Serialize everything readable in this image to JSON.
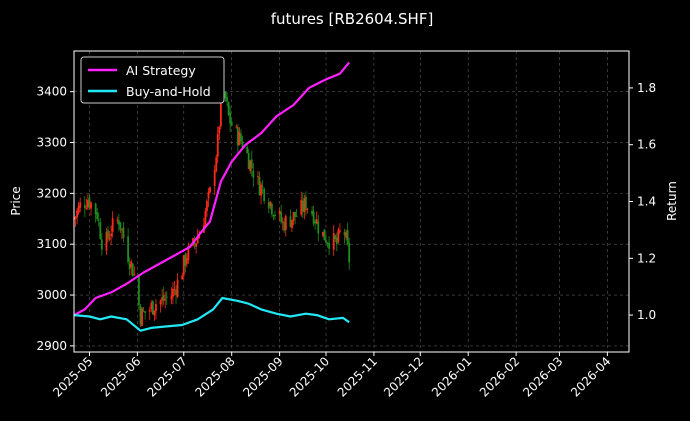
{
  "chart_data": {
    "type": "line",
    "title": "futures [RB2604.SHF]",
    "ylabel_left": "Price",
    "ylabel_right": "Return",
    "grid": true,
    "legend_position": "top-left",
    "colors": {
      "background": "#000000",
      "candle_up": "#ff2a1a",
      "candle_down": "#1e8c1e",
      "ai_strategy": "#ff20ff",
      "buy_and_hold": "#22e8f5",
      "grid": "#5a5a5a"
    },
    "x_range": [
      "2025-04-21",
      "2026-04-15"
    ],
    "x_ticks": [
      "2025-05",
      "2025-06",
      "2025-07",
      "2025-08",
      "2025-09",
      "2025-10",
      "2025-11",
      "2025-12",
      "2026-01",
      "2026-02",
      "2026-03",
      "2026-04"
    ],
    "y_left_range": [
      2888,
      3480
    ],
    "y_left_ticks": [
      2900,
      3000,
      3100,
      3200,
      3300,
      3400
    ],
    "y_right_range": [
      0.87,
      1.93
    ],
    "y_right_ticks": [
      1.0,
      1.2,
      1.4,
      1.6,
      1.8
    ],
    "price_series": [
      {
        "date": "2025-04-21",
        "price": 3150
      },
      {
        "date": "2025-04-25",
        "price": 3175
      },
      {
        "date": "2025-04-30",
        "price": 3190
      },
      {
        "date": "2025-05-06",
        "price": 3160
      },
      {
        "date": "2025-05-10",
        "price": 3090
      },
      {
        "date": "2025-05-15",
        "price": 3130
      },
      {
        "date": "2025-05-20",
        "price": 3150
      },
      {
        "date": "2025-05-25",
        "price": 3090
      },
      {
        "date": "2025-05-30",
        "price": 3040
      },
      {
        "date": "2025-06-03",
        "price": 2960
      },
      {
        "date": "2025-06-08",
        "price": 2970
      },
      {
        "date": "2025-06-13",
        "price": 2985
      },
      {
        "date": "2025-06-18",
        "price": 2990
      },
      {
        "date": "2025-06-23",
        "price": 3000
      },
      {
        "date": "2025-06-28",
        "price": 3030
      },
      {
        "date": "2025-07-03",
        "price": 3080
      },
      {
        "date": "2025-07-08",
        "price": 3100
      },
      {
        "date": "2025-07-13",
        "price": 3140
      },
      {
        "date": "2025-07-18",
        "price": 3200
      },
      {
        "date": "2025-07-23",
        "price": 3300
      },
      {
        "date": "2025-07-26",
        "price": 3420
      },
      {
        "date": "2025-07-30",
        "price": 3350
      },
      {
        "date": "2025-08-03",
        "price": 3320
      },
      {
        "date": "2025-08-08",
        "price": 3300
      },
      {
        "date": "2025-08-13",
        "price": 3260
      },
      {
        "date": "2025-08-18",
        "price": 3220
      },
      {
        "date": "2025-08-23",
        "price": 3200
      },
      {
        "date": "2025-08-28",
        "price": 3170
      },
      {
        "date": "2025-09-03",
        "price": 3140
      },
      {
        "date": "2025-09-08",
        "price": 3150
      },
      {
        "date": "2025-09-13",
        "price": 3160
      },
      {
        "date": "2025-09-18",
        "price": 3180
      },
      {
        "date": "2025-09-23",
        "price": 3160
      },
      {
        "date": "2025-09-28",
        "price": 3120
      },
      {
        "date": "2025-10-03",
        "price": 3110
      },
      {
        "date": "2025-10-08",
        "price": 3100
      },
      {
        "date": "2025-10-12",
        "price": 3140
      },
      {
        "date": "2025-10-16",
        "price": 3070
      }
    ],
    "series": [
      {
        "name": "AI Strategy",
        "points": [
          {
            "date": "2025-04-21",
            "value": 1.0
          },
          {
            "date": "2025-04-28",
            "value": 1.02
          },
          {
            "date": "2025-05-05",
            "value": 1.06
          },
          {
            "date": "2025-05-15",
            "value": 1.08
          },
          {
            "date": "2025-05-25",
            "value": 1.11
          },
          {
            "date": "2025-06-05",
            "value": 1.15
          },
          {
            "date": "2025-06-15",
            "value": 1.18
          },
          {
            "date": "2025-06-25",
            "value": 1.21
          },
          {
            "date": "2025-07-05",
            "value": 1.24
          },
          {
            "date": "2025-07-12",
            "value": 1.29
          },
          {
            "date": "2025-07-18",
            "value": 1.33
          },
          {
            "date": "2025-07-25",
            "value": 1.47
          },
          {
            "date": "2025-08-01",
            "value": 1.54
          },
          {
            "date": "2025-08-10",
            "value": 1.6
          },
          {
            "date": "2025-08-20",
            "value": 1.64
          },
          {
            "date": "2025-08-30",
            "value": 1.7
          },
          {
            "date": "2025-09-10",
            "value": 1.74
          },
          {
            "date": "2025-09-20",
            "value": 1.8
          },
          {
            "date": "2025-10-01",
            "value": 1.83
          },
          {
            "date": "2025-10-10",
            "value": 1.85
          },
          {
            "date": "2025-10-16",
            "value": 1.89
          }
        ]
      },
      {
        "name": "Buy-and-Hold",
        "points": [
          {
            "date": "2025-04-21",
            "value": 1.0
          },
          {
            "date": "2025-05-01",
            "value": 0.995
          },
          {
            "date": "2025-05-08",
            "value": 0.985
          },
          {
            "date": "2025-05-15",
            "value": 0.995
          },
          {
            "date": "2025-05-25",
            "value": 0.985
          },
          {
            "date": "2025-06-03",
            "value": 0.945
          },
          {
            "date": "2025-06-10",
            "value": 0.955
          },
          {
            "date": "2025-06-20",
            "value": 0.96
          },
          {
            "date": "2025-06-30",
            "value": 0.965
          },
          {
            "date": "2025-07-10",
            "value": 0.985
          },
          {
            "date": "2025-07-20",
            "value": 1.02
          },
          {
            "date": "2025-07-26",
            "value": 1.06
          },
          {
            "date": "2025-08-05",
            "value": 1.05
          },
          {
            "date": "2025-08-12",
            "value": 1.04
          },
          {
            "date": "2025-08-20",
            "value": 1.02
          },
          {
            "date": "2025-08-30",
            "value": 1.005
          },
          {
            "date": "2025-09-08",
            "value": 0.995
          },
          {
            "date": "2025-09-18",
            "value": 1.005
          },
          {
            "date": "2025-09-25",
            "value": 1.0
          },
          {
            "date": "2025-10-03",
            "value": 0.985
          },
          {
            "date": "2025-10-12",
            "value": 0.99
          },
          {
            "date": "2025-10-16",
            "value": 0.975
          }
        ]
      }
    ]
  }
}
